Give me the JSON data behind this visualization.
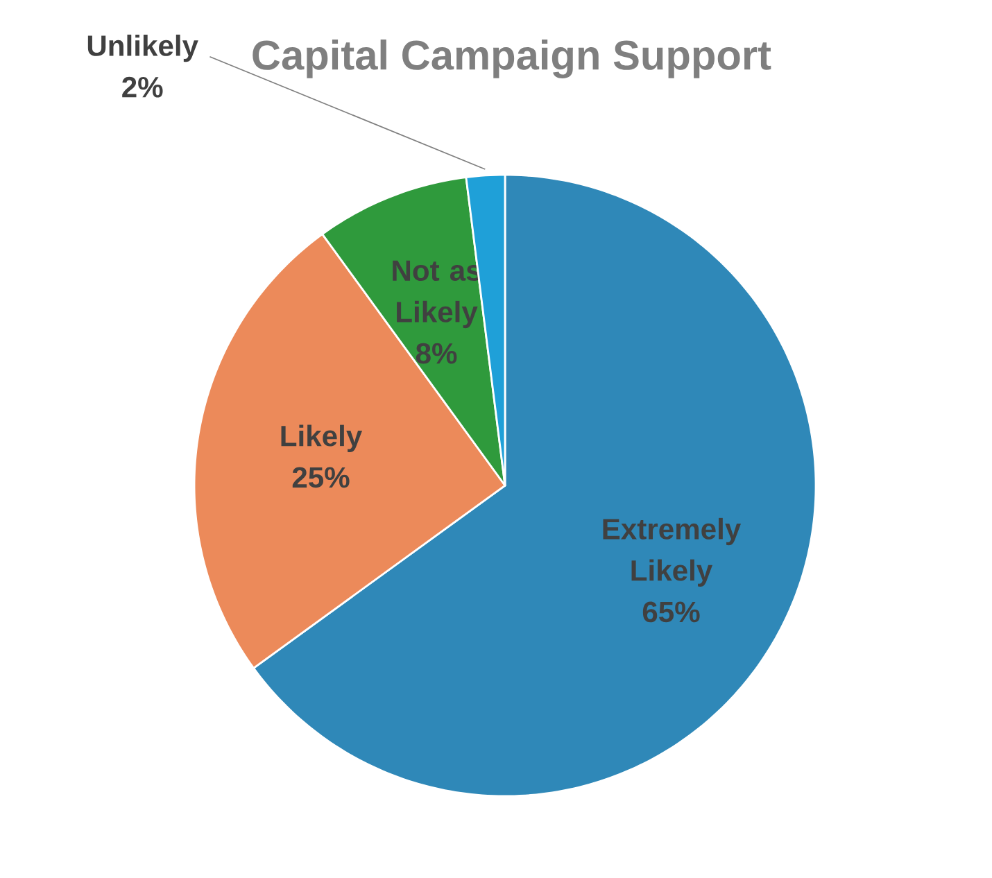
{
  "chart_data": {
    "type": "pie",
    "title": "Capital Campaign Support",
    "categories": [
      "Extremely Likely",
      "Likely",
      "Not as Likely",
      "Unlikely"
    ],
    "values": [
      65,
      25,
      8,
      2
    ],
    "value_labels": [
      "65%",
      "25%",
      "8%",
      "2%"
    ],
    "colors": [
      "#2f88b8",
      "#ec8a5a",
      "#2f9a3c",
      "#1fa0d8"
    ]
  }
}
